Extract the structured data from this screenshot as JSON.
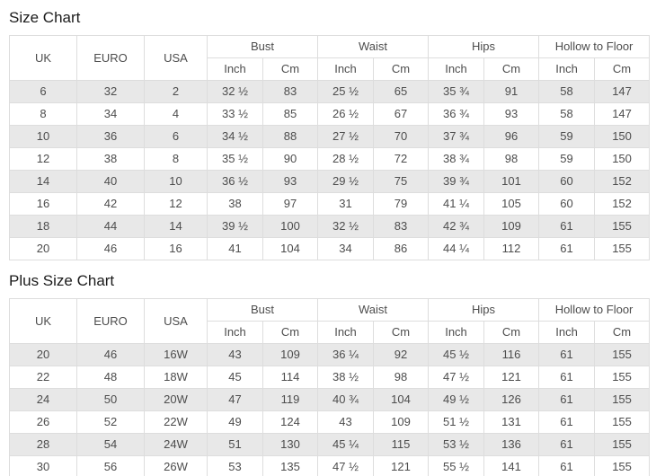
{
  "colors": {
    "stripe_row": "#e8e8e8",
    "border": "#dddddd",
    "cell_text": "#4d4d4d",
    "title_text": "#1b1b1b",
    "page_background": "#ffffff"
  },
  "charts": [
    {
      "title": "Size Chart",
      "simple_headers": [
        "UK",
        "EURO",
        "USA"
      ],
      "group_headers": [
        {
          "label": "Bust",
          "sub": [
            "Inch",
            "Cm"
          ]
        },
        {
          "label": "Waist",
          "sub": [
            "Inch",
            "Cm"
          ]
        },
        {
          "label": "Hips",
          "sub": [
            "Inch",
            "Cm"
          ]
        },
        {
          "label": "Hollow to Floor",
          "sub": [
            "Inch",
            "Cm"
          ]
        }
      ],
      "rows": [
        [
          "6",
          "32",
          "2",
          "32 ½",
          "83",
          "25 ½",
          "65",
          "35 ¾",
          "91",
          "58",
          "147"
        ],
        [
          "8",
          "34",
          "4",
          "33 ½",
          "85",
          "26 ½",
          "67",
          "36 ¾",
          "93",
          "58",
          "147"
        ],
        [
          "10",
          "36",
          "6",
          "34 ½",
          "88",
          "27 ½",
          "70",
          "37 ¾",
          "96",
          "59",
          "150"
        ],
        [
          "12",
          "38",
          "8",
          "35 ½",
          "90",
          "28 ½",
          "72",
          "38 ¾",
          "98",
          "59",
          "150"
        ],
        [
          "14",
          "40",
          "10",
          "36 ½",
          "93",
          "29 ½",
          "75",
          "39 ¾",
          "101",
          "60",
          "152"
        ],
        [
          "16",
          "42",
          "12",
          "38",
          "97",
          "31",
          "79",
          "41 ¼",
          "105",
          "60",
          "152"
        ],
        [
          "18",
          "44",
          "14",
          "39 ½",
          "100",
          "32 ½",
          "83",
          "42 ¾",
          "109",
          "61",
          "155"
        ],
        [
          "20",
          "46",
          "16",
          "41",
          "104",
          "34",
          "86",
          "44 ¼",
          "112",
          "61",
          "155"
        ]
      ]
    },
    {
      "title": "Plus Size Chart",
      "simple_headers": [
        "UK",
        "EURO",
        "USA"
      ],
      "group_headers": [
        {
          "label": "Bust",
          "sub": [
            "Inch",
            "Cm"
          ]
        },
        {
          "label": "Waist",
          "sub": [
            "Inch",
            "Cm"
          ]
        },
        {
          "label": "Hips",
          "sub": [
            "Inch",
            "Cm"
          ]
        },
        {
          "label": "Hollow to Floor",
          "sub": [
            "Inch",
            "Cm"
          ]
        }
      ],
      "rows": [
        [
          "20",
          "46",
          "16W",
          "43",
          "109",
          "36 ¼",
          "92",
          "45 ½",
          "116",
          "61",
          "155"
        ],
        [
          "22",
          "48",
          "18W",
          "45",
          "114",
          "38 ½",
          "98",
          "47 ½",
          "121",
          "61",
          "155"
        ],
        [
          "24",
          "50",
          "20W",
          "47",
          "119",
          "40 ¾",
          "104",
          "49 ½",
          "126",
          "61",
          "155"
        ],
        [
          "26",
          "52",
          "22W",
          "49",
          "124",
          "43",
          "109",
          "51 ½",
          "131",
          "61",
          "155"
        ],
        [
          "28",
          "54",
          "24W",
          "51",
          "130",
          "45 ¼",
          "115",
          "53 ½",
          "136",
          "61",
          "155"
        ],
        [
          "30",
          "56",
          "26W",
          "53",
          "135",
          "47 ½",
          "121",
          "55 ½",
          "141",
          "61",
          "155"
        ]
      ]
    }
  ]
}
